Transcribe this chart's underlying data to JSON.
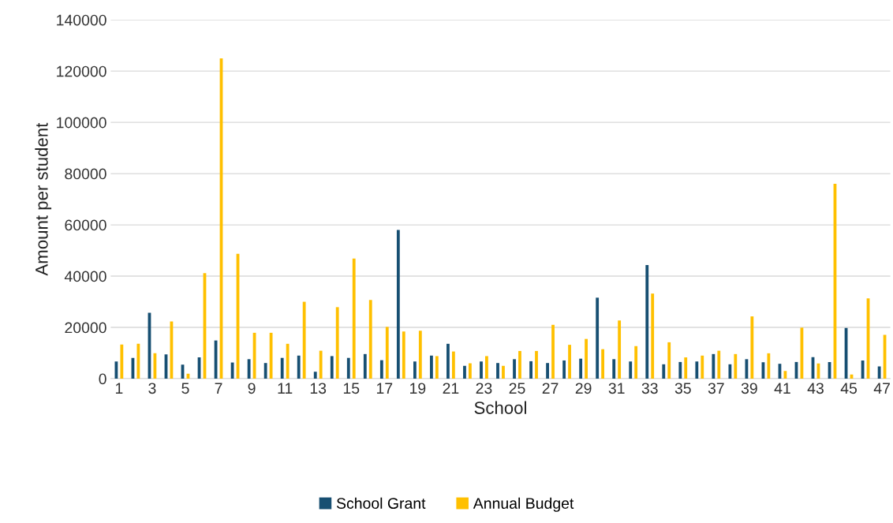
{
  "chart_data": {
    "type": "bar",
    "xlabel": "School",
    "ylabel": "Amount per student",
    "categories": [
      "1",
      null,
      "3",
      null,
      "5",
      null,
      "7",
      null,
      "9",
      null,
      "11",
      null,
      "13",
      null,
      "15",
      null,
      "17",
      null,
      "19",
      null,
      "21",
      null,
      "23",
      null,
      "25",
      null,
      "27",
      null,
      "29",
      null,
      "31",
      null,
      "33",
      null,
      "35",
      null,
      "37",
      null,
      "39",
      null,
      "41",
      null,
      "43",
      null,
      "45",
      null,
      "47"
    ],
    "series": [
      {
        "name": "School Grant",
        "color": "#174f72",
        "values": [
          6700,
          8100,
          25700,
          9500,
          5500,
          8300,
          14900,
          6300,
          7600,
          6100,
          8100,
          9000,
          2700,
          8800,
          8100,
          9600,
          7200,
          58000,
          6700,
          9000,
          13600,
          5000,
          6700,
          6100,
          7600,
          6800,
          6100,
          7100,
          7800,
          31600,
          7600,
          6700,
          44300,
          5600,
          6500,
          6700,
          9600,
          5600,
          7600,
          6400,
          5800,
          6500,
          8400,
          6500,
          19800,
          7100,
          4800
        ]
      },
      {
        "name": "Annual Budget",
        "color": "#ffc000",
        "values": [
          13300,
          13600,
          9900,
          22300,
          1900,
          41200,
          125000,
          48700,
          17900,
          17900,
          13600,
          30000,
          10900,
          27900,
          46900,
          30700,
          20200,
          18400,
          18700,
          8800,
          10600,
          6000,
          8800,
          5000,
          10800,
          10800,
          21000,
          13200,
          15500,
          11500,
          22700,
          12700,
          33200,
          14200,
          8300,
          9000,
          10900,
          9600,
          24300,
          9900,
          3000,
          19900,
          5900,
          76000,
          1600,
          31300,
          17100
        ]
      }
    ],
    "ylim": [
      0,
      140000
    ],
    "yticks": [
      0,
      20000,
      40000,
      60000,
      80000,
      100000,
      120000,
      140000
    ],
    "grid": "y",
    "legend": "bottom"
  }
}
